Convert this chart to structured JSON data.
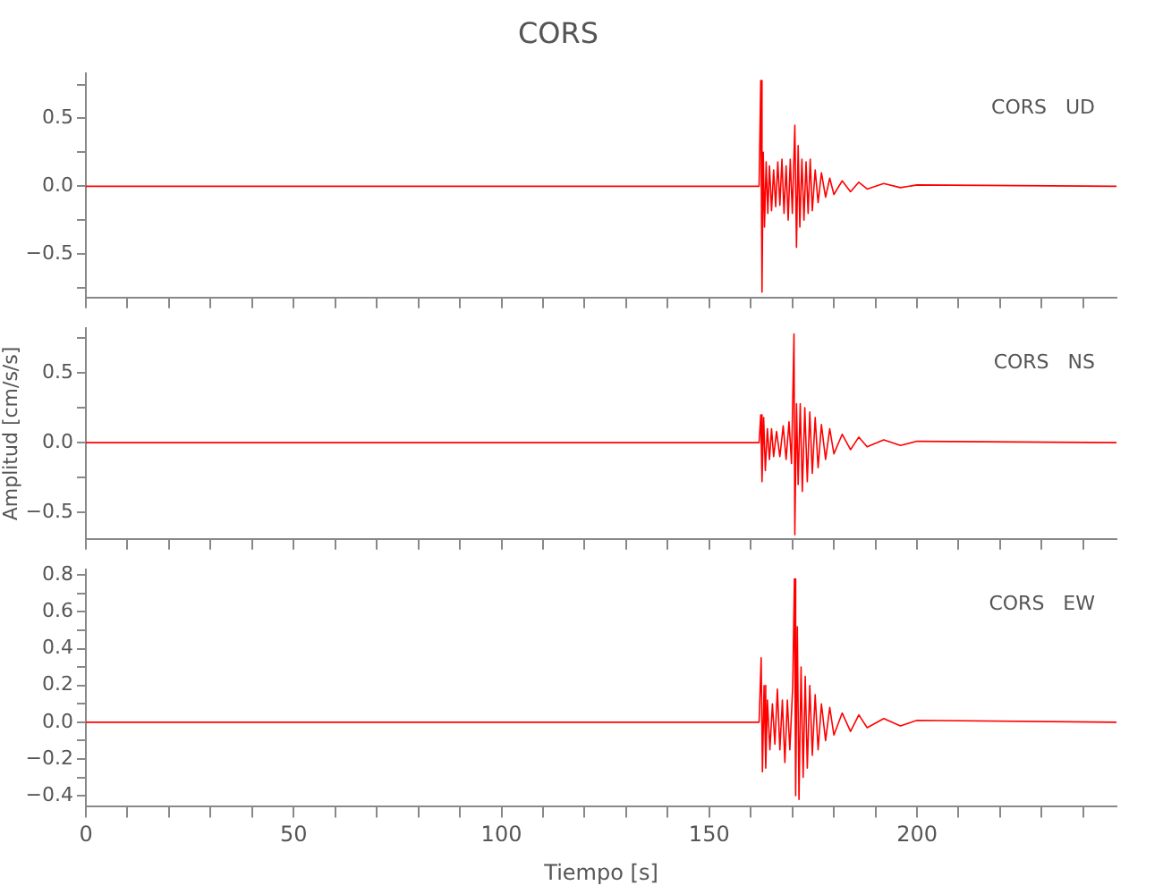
{
  "chart_data": [
    {
      "type": "line",
      "title": "CORS",
      "tick_labels": "y",
      "grid": false,
      "legend": false,
      "marker": "none",
      "line_style": "solid",
      "xlim": [
        0,
        248
      ],
      "ylim": [
        -0.82,
        0.83
      ],
      "xticks": [
        0,
        {
          "value": 10,
          "label": null
        },
        {
          "value": 20,
          "label": null
        },
        {
          "value": 30,
          "label": null
        },
        {
          "value": 40,
          "label": null
        },
        50,
        {
          "value": 60,
          "label": null
        },
        {
          "value": 70,
          "label": null
        },
        {
          "value": 80,
          "label": null
        },
        {
          "value": 90,
          "label": null
        },
        100,
        {
          "value": 110,
          "label": null
        },
        {
          "value": 120,
          "label": null
        },
        {
          "value": 130,
          "label": null
        },
        {
          "value": 140,
          "label": null
        },
        150,
        {
          "value": 160,
          "label": null
        },
        {
          "value": 170,
          "label": null
        },
        {
          "value": 180,
          "label": null
        },
        {
          "value": 190,
          "label": null
        },
        200,
        {
          "value": 210,
          "label": null
        },
        {
          "value": 220,
          "label": null
        },
        {
          "value": 230,
          "label": null
        },
        {
          "value": 240,
          "label": null
        }
      ],
      "yticks": [
        {
          "value": -0.75,
          "label": null
        },
        {
          "value": -0.5,
          "label": "−0.5"
        },
        {
          "value": -0.25,
          "label": null
        },
        {
          "value": 0,
          "label": "0.0"
        },
        {
          "value": 0.25,
          "label": null
        },
        0.5,
        {
          "value": 0.75,
          "label": null
        }
      ],
      "series": [
        {
          "name": "CORS   UD",
          "color": "#ff0000",
          "x": [
            0,
            50,
            100,
            150,
            162,
            162.4,
            162.7,
            163.0,
            163.3,
            163.7,
            164.1,
            164.5,
            165,
            165.5,
            166,
            166.5,
            167,
            167.5,
            168,
            168.5,
            169,
            169.5,
            170,
            170.6,
            171,
            171.4,
            171.8,
            172.3,
            172.8,
            173.3,
            173.8,
            174.3,
            174.8,
            175.5,
            176.2,
            177,
            178,
            179,
            180,
            182,
            184,
            186,
            188,
            192,
            196,
            200,
            248
          ],
          "values": [
            0,
            0,
            0,
            0,
            0,
            0.78,
            -0.78,
            0.25,
            -0.3,
            0.18,
            -0.2,
            0.15,
            -0.18,
            0.12,
            -0.15,
            0.18,
            -0.14,
            0.2,
            -0.2,
            0.15,
            -0.25,
            0.2,
            -0.2,
            0.45,
            -0.45,
            0.3,
            -0.3,
            0.2,
            -0.25,
            0.18,
            -0.2,
            0.2,
            -0.18,
            0.12,
            -0.12,
            0.1,
            -0.08,
            0.06,
            -0.06,
            0.04,
            -0.04,
            0.03,
            -0.02,
            0.02,
            -0.01,
            0.01,
            0
          ]
        }
      ]
    },
    {
      "type": "line",
      "ylabel": "Amplitud [cm/s/s]",
      "tick_labels": "y",
      "grid": false,
      "legend": false,
      "marker": "none",
      "line_style": "solid",
      "xlim": [
        0,
        248
      ],
      "ylim": [
        -0.69,
        0.82
      ],
      "xticks": [
        0,
        {
          "value": 10,
          "label": null
        },
        {
          "value": 20,
          "label": null
        },
        {
          "value": 30,
          "label": null
        },
        {
          "value": 40,
          "label": null
        },
        50,
        {
          "value": 60,
          "label": null
        },
        {
          "value": 70,
          "label": null
        },
        {
          "value": 80,
          "label": null
        },
        {
          "value": 90,
          "label": null
        },
        100,
        {
          "value": 110,
          "label": null
        },
        {
          "value": 120,
          "label": null
        },
        {
          "value": 130,
          "label": null
        },
        {
          "value": 140,
          "label": null
        },
        150,
        {
          "value": 160,
          "label": null
        },
        {
          "value": 170,
          "label": null
        },
        {
          "value": 180,
          "label": null
        },
        {
          "value": 190,
          "label": null
        },
        200,
        {
          "value": 210,
          "label": null
        },
        {
          "value": 220,
          "label": null
        },
        {
          "value": 230,
          "label": null
        },
        {
          "value": 240,
          "label": null
        }
      ],
      "yticks": [
        {
          "value": -0.5,
          "label": "−0.5"
        },
        {
          "value": -0.25,
          "label": null
        },
        {
          "value": 0,
          "label": "0.0"
        },
        {
          "value": 0.25,
          "label": null
        },
        0.5,
        {
          "value": 0.75,
          "label": null
        }
      ],
      "series": [
        {
          "name": "CORS   NS",
          "color": "#ff0000",
          "x": [
            0,
            162,
            162.4,
            162.7,
            163.1,
            163.5,
            164,
            164.5,
            165,
            165.5,
            166.2,
            167,
            167.8,
            168.5,
            169.2,
            169.8,
            170.4,
            170.6,
            171,
            171.4,
            171.9,
            172.4,
            173,
            173.6,
            174.2,
            174.8,
            175.5,
            176.2,
            177,
            178,
            179,
            180,
            182,
            184,
            186,
            188,
            192,
            196,
            200,
            248
          ],
          "values": [
            0,
            0,
            0.2,
            -0.28,
            0.18,
            -0.2,
            0.1,
            -0.12,
            0.1,
            -0.1,
            0.08,
            -0.1,
            0.12,
            -0.12,
            0.15,
            -0.15,
            0.78,
            -0.66,
            0.28,
            -0.3,
            0.28,
            -0.35,
            0.25,
            -0.28,
            0.22,
            -0.22,
            0.18,
            -0.18,
            0.13,
            -0.12,
            0.1,
            -0.08,
            0.06,
            -0.05,
            0.04,
            -0.03,
            0.02,
            -0.02,
            0.01,
            0
          ]
        }
      ]
    },
    {
      "type": "line",
      "xlabel": "Tiempo [s]",
      "grid": false,
      "legend": false,
      "marker": "none",
      "line_style": "solid",
      "xlim": [
        0,
        248
      ],
      "ylim": [
        -0.46,
        0.83
      ],
      "xticks": [
        0,
        {
          "value": 10,
          "label": null
        },
        {
          "value": 20,
          "label": null
        },
        {
          "value": 30,
          "label": null
        },
        {
          "value": 40,
          "label": null
        },
        50,
        {
          "value": 60,
          "label": null
        },
        {
          "value": 70,
          "label": null
        },
        {
          "value": 80,
          "label": null
        },
        {
          "value": 90,
          "label": null
        },
        100,
        {
          "value": 110,
          "label": null
        },
        {
          "value": 120,
          "label": null
        },
        {
          "value": 130,
          "label": null
        },
        {
          "value": 140,
          "label": null
        },
        150,
        {
          "value": 160,
          "label": null
        },
        {
          "value": 170,
          "label": null
        },
        {
          "value": 180,
          "label": null
        },
        {
          "value": 190,
          "label": null
        },
        200,
        {
          "value": 210,
          "label": null
        },
        {
          "value": 220,
          "label": null
        },
        {
          "value": 230,
          "label": null
        },
        {
          "value": 240,
          "label": null
        }
      ],
      "yticks": [
        {
          "value": -0.4,
          "label": "−0.4"
        },
        {
          "value": -0.3,
          "label": null
        },
        {
          "value": -0.2,
          "label": "−0.2"
        },
        {
          "value": -0.1,
          "label": null
        },
        {
          "value": 0,
          "label": "0.0"
        },
        {
          "value": 0.1,
          "label": null
        },
        0.2,
        {
          "value": 0.3,
          "label": null
        },
        0.4,
        {
          "value": 0.5,
          "label": null
        },
        0.6,
        {
          "value": 0.7,
          "label": null
        },
        0.8
      ],
      "series": [
        {
          "name": "CORS   EW",
          "color": "#ff0000",
          "x": [
            0,
            162,
            162.5,
            162.8,
            163.2,
            163.6,
            164,
            164.6,
            165.2,
            165.8,
            166.4,
            167,
            167.6,
            168.2,
            168.8,
            169.4,
            170.1,
            170.5,
            170.8,
            171.2,
            171.6,
            172.1,
            172.6,
            173.1,
            173.6,
            174.2,
            174.8,
            175.5,
            176.2,
            177,
            178,
            179,
            180,
            182,
            184,
            186,
            188,
            192,
            196,
            200,
            248
          ],
          "values": [
            0,
            0,
            0.35,
            -0.27,
            0.2,
            -0.25,
            0.12,
            -0.15,
            0.1,
            -0.12,
            0.18,
            -0.15,
            0.12,
            -0.22,
            0.12,
            -0.15,
            0.2,
            0.78,
            -0.4,
            0.52,
            -0.42,
            0.3,
            -0.3,
            0.25,
            -0.25,
            0.2,
            -0.18,
            0.15,
            -0.15,
            0.1,
            -0.1,
            0.08,
            -0.07,
            0.05,
            -0.05,
            0.04,
            -0.03,
            0.02,
            -0.02,
            0.01,
            0
          ]
        }
      ]
    }
  ]
}
